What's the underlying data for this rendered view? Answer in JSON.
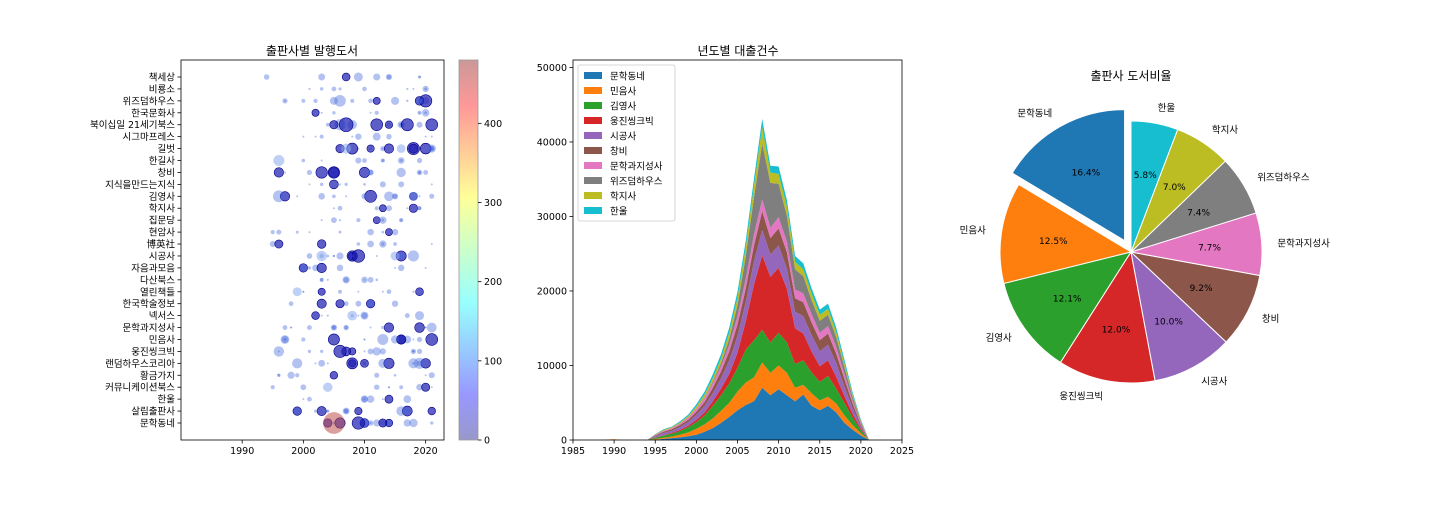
{
  "chart_data": [
    {
      "type": "scatter",
      "title": "출판사별 발행도서",
      "xlim": [
        1980,
        2023
      ],
      "xticks": [
        1990,
        2000,
        2010,
        2020
      ],
      "publishers": [
        "책세상",
        "비룡소",
        "위즈덤하우스",
        "한국문화사",
        "북이십일 21세기북스",
        "시그마프레스",
        "길벗",
        "한길사",
        "창비",
        "지식을만드는지식",
        "김영사",
        "학지사",
        "집문당",
        "현암사",
        "博英社",
        "시공사",
        "자음과모음",
        "다산북스",
        "열린책들",
        "한국학술정보",
        "넥서스",
        "문학과지성사",
        "민음사",
        "웅진씽크빅",
        "랜덤하우스코리아",
        "황금가지",
        "커뮤니케이션북스",
        "한울",
        "살림출판사",
        "문학동네"
      ],
      "highlights": [
        {
          "publisher": "문학동네",
          "year": 2005,
          "count": 470
        },
        {
          "publisher": "한길사",
          "year": 1996,
          "count": 120
        },
        {
          "publisher": "시공사",
          "year": 2003,
          "count": 110
        },
        {
          "publisher": "길벗",
          "year": 2007,
          "count": 100
        },
        {
          "publisher": "넥서스",
          "year": 2008,
          "count": 95
        },
        {
          "publisher": "커뮤니케이션북스",
          "year": 2004,
          "count": 90
        },
        {
          "publisher": "열린책들",
          "year": 1999,
          "count": 80
        },
        {
          "publisher": "김영사",
          "year": 2018,
          "count": 85
        },
        {
          "publisher": "시공사",
          "year": 2015,
          "count": 80
        },
        {
          "publisher": "길벗",
          "year": 2016,
          "count": 75
        }
      ],
      "colorbar": {
        "min": 0,
        "max": 480,
        "ticks": [
          0,
          100,
          200,
          300,
          400
        ]
      }
    },
    {
      "type": "area",
      "title": "년도별 대출건수",
      "xlim": [
        1985,
        2025
      ],
      "xticks": [
        1985,
        1990,
        1995,
        2000,
        2005,
        2010,
        2015,
        2020,
        2025
      ],
      "ylim": [
        0,
        51000
      ],
      "yticks": [
        0,
        10000,
        20000,
        30000,
        40000,
        50000
      ],
      "legend_position": "top-left",
      "x": [
        1985,
        1988,
        1990,
        1991,
        1992,
        1993,
        1994,
        1995,
        1996,
        1997,
        1998,
        1999,
        2000,
        2001,
        2002,
        2003,
        2004,
        2005,
        2006,
        2007,
        2008,
        2009,
        2010,
        2011,
        2012,
        2013,
        2014,
        2015,
        2016,
        2017,
        2018,
        2019,
        2020,
        2021,
        2022,
        2023,
        2025
      ],
      "series": [
        {
          "name": "문학동네",
          "color": "#1f77b4",
          "values": [
            0,
            0,
            0,
            0,
            0,
            0,
            0,
            50,
            150,
            250,
            350,
            500,
            700,
            1100,
            1600,
            2300,
            3100,
            4000,
            4700,
            5200,
            7000,
            6000,
            6800,
            6000,
            5200,
            6100,
            4600,
            4000,
            4600,
            3700,
            2300,
            1400,
            600,
            0,
            0,
            0,
            0
          ]
        },
        {
          "name": "민음사",
          "color": "#ff7f0e",
          "values": [
            0,
            0,
            100,
            0,
            0,
            0,
            0,
            100,
            150,
            200,
            350,
            500,
            800,
            1000,
            1300,
            1600,
            1900,
            2500,
            3000,
            3200,
            3400,
            3000,
            3200,
            3000,
            1800,
            1300,
            1700,
            1300,
            1200,
            1200,
            1000,
            600,
            300,
            0,
            0,
            0,
            0
          ]
        },
        {
          "name": "김영사",
          "color": "#2ca02c",
          "values": [
            0,
            0,
            0,
            0,
            0,
            0,
            0,
            150,
            300,
            400,
            500,
            700,
            900,
            1200,
            1700,
            2100,
            2600,
            3200,
            4400,
            5000,
            4400,
            4100,
            4400,
            4100,
            3200,
            3300,
            2800,
            2500,
            2800,
            2000,
            1700,
            1000,
            400,
            0,
            0,
            0,
            0
          ]
        },
        {
          "name": "웅진씽크빅",
          "color": "#d62728",
          "values": [
            0,
            0,
            0,
            0,
            0,
            0,
            0,
            50,
            50,
            100,
            150,
            200,
            300,
            400,
            600,
            900,
            1300,
            2000,
            3800,
            7500,
            10000,
            8800,
            8700,
            7200,
            4800,
            3600,
            2800,
            2100,
            2100,
            1600,
            900,
            500,
            200,
            0,
            0,
            0,
            0
          ]
        },
        {
          "name": "시공사",
          "color": "#9467bd",
          "values": [
            0,
            0,
            0,
            0,
            0,
            0,
            0,
            150,
            300,
            300,
            400,
            500,
            700,
            900,
            1100,
            1400,
            1800,
            2300,
            2600,
            3100,
            3400,
            3000,
            3000,
            2700,
            2200,
            2300,
            2200,
            2000,
            2100,
            1800,
            1300,
            800,
            300,
            0,
            0,
            0,
            0
          ]
        },
        {
          "name": "창비",
          "color": "#8c564b",
          "values": [
            0,
            0,
            0,
            0,
            0,
            0,
            0,
            100,
            150,
            200,
            250,
            300,
            400,
            500,
            700,
            900,
            1200,
            1500,
            1800,
            2100,
            2500,
            2200,
            2300,
            2200,
            1800,
            1900,
            1700,
            1500,
            1500,
            1300,
            1000,
            600,
            250,
            0,
            0,
            0,
            0
          ]
        },
        {
          "name": "문학과지성사",
          "color": "#e377c2",
          "values": [
            0,
            0,
            0,
            0,
            0,
            0,
            0,
            100,
            150,
            150,
            200,
            300,
            400,
            500,
            600,
            700,
            900,
            1100,
            1300,
            1500,
            1600,
            1400,
            1500,
            1400,
            1200,
            1200,
            1100,
            1000,
            1000,
            900,
            700,
            400,
            200,
            0,
            0,
            0,
            0
          ]
        },
        {
          "name": "위즈덤하우스",
          "color": "#7f7f7f",
          "values": [
            0,
            0,
            0,
            0,
            0,
            0,
            0,
            0,
            0,
            0,
            0,
            0,
            0,
            100,
            200,
            400,
            800,
            1500,
            3000,
            5000,
            7500,
            6000,
            4500,
            3500,
            2700,
            2300,
            1900,
            1600,
            1500,
            1300,
            900,
            500,
            200,
            0,
            0,
            0,
            0
          ]
        },
        {
          "name": "학지사",
          "color": "#bcbd22",
          "values": [
            0,
            0,
            0,
            0,
            0,
            0,
            0,
            50,
            100,
            100,
            150,
            200,
            300,
            400,
            500,
            600,
            800,
            1000,
            1200,
            1500,
            2200,
            1400,
            1300,
            1200,
            1000,
            900,
            900,
            800,
            800,
            700,
            500,
            300,
            150,
            0,
            0,
            0,
            0
          ]
        },
        {
          "name": "한울",
          "color": "#17becf",
          "values": [
            0,
            0,
            0,
            0,
            0,
            0,
            0,
            50,
            100,
            100,
            150,
            200,
            300,
            400,
            500,
            600,
            700,
            800,
            900,
            1000,
            1100,
            900,
            1000,
            900,
            800,
            800,
            700,
            700,
            700,
            600,
            500,
            300,
            150,
            0,
            0,
            0,
            0
          ]
        }
      ]
    },
    {
      "type": "pie",
      "title": "출판사 도서비율",
      "slices": [
        {
          "label": "문학동네",
          "pct": "16.4%",
          "value": 16.4,
          "color": "#1f77b4",
          "explode": true
        },
        {
          "label": "민음사",
          "pct": "12.5%",
          "value": 12.5,
          "color": "#ff7f0e"
        },
        {
          "label": "김영사",
          "pct": "12.1%",
          "value": 12.1,
          "color": "#2ca02c"
        },
        {
          "label": "웅진씽크빅",
          "pct": "12.0%",
          "value": 12.0,
          "color": "#d62728"
        },
        {
          "label": "시공사",
          "pct": "10.0%",
          "value": 10.0,
          "color": "#9467bd"
        },
        {
          "label": "창비",
          "pct": "9.2%",
          "value": 9.2,
          "color": "#8c564b"
        },
        {
          "label": "문학과지성사",
          "pct": "7.7%",
          "value": 7.7,
          "color": "#e377c2"
        },
        {
          "label": "위즈덤하우스",
          "pct": "7.4%",
          "value": 7.4,
          "color": "#7f7f7f"
        },
        {
          "label": "학지사",
          "pct": "7.0%",
          "value": 7.0,
          "color": "#bcbd22"
        },
        {
          "label": "한울",
          "pct": "5.8%",
          "value": 5.8,
          "color": "#17becf"
        }
      ]
    }
  ]
}
